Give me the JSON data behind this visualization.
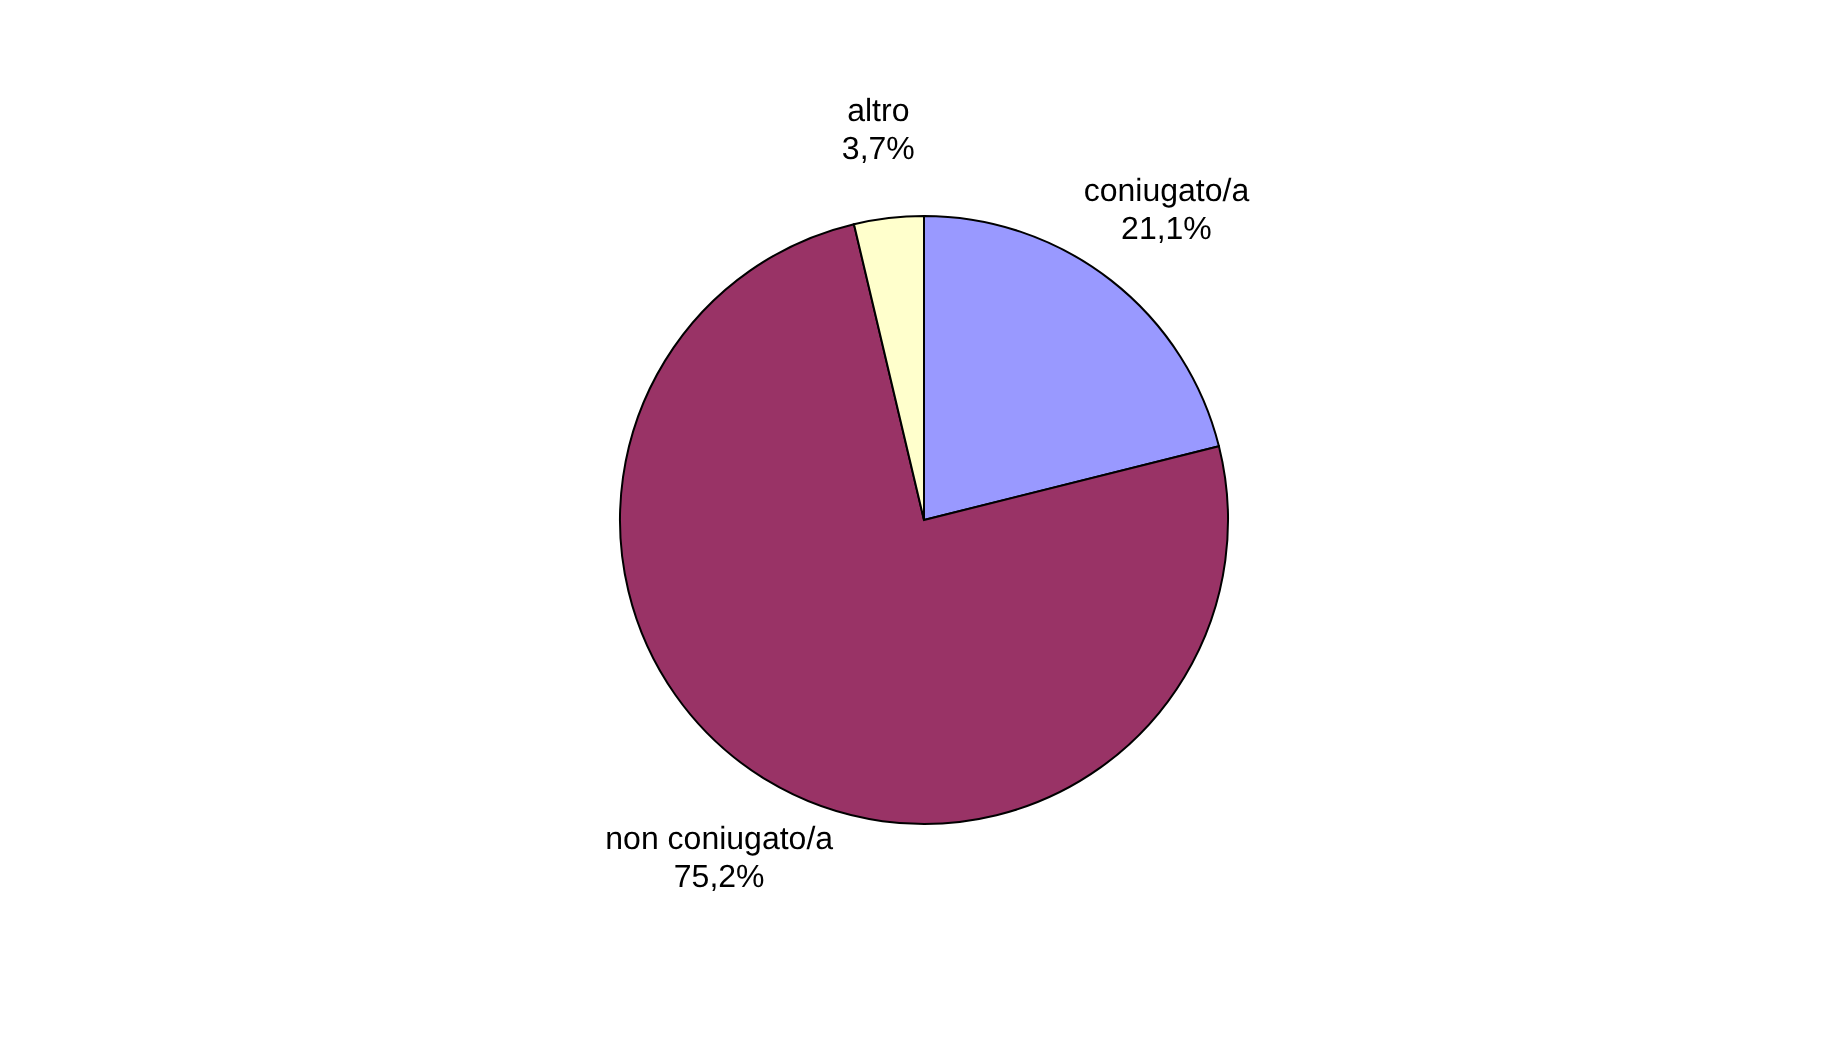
{
  "chart_data": {
    "type": "pie",
    "categories": [
      "coniugato/a",
      "non coniugato/a",
      "altro"
    ],
    "values": [
      21.1,
      75.2,
      3.7
    ],
    "value_labels": [
      "21,1%",
      "75,2%",
      "3,7%"
    ],
    "colors": [
      "#9999ff",
      "#993366",
      "#ffffcc"
    ],
    "legend": false
  }
}
